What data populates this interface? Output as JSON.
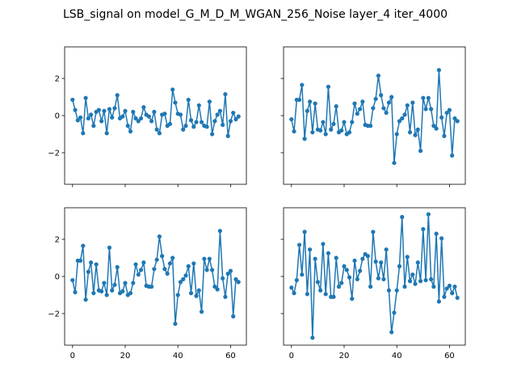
{
  "figure": {
    "suptitle": "LSB_signal on model_G_M_D_M_WGAN_256_Noise layer_4 iter_4000"
  },
  "chart_data": [
    {
      "type": "line",
      "panel": "top-left",
      "marker": "circle",
      "color": "#1f77b4",
      "xlim": [
        -3,
        66
      ],
      "ylim": [
        -3.7,
        3.7
      ],
      "yticks": [
        -2,
        0,
        2
      ],
      "xticks": [
        0,
        20,
        40,
        60
      ],
      "show_xtick_labels": false,
      "show_ytick_labels": true,
      "x": [
        0,
        1,
        2,
        3,
        4,
        5,
        6,
        7,
        8,
        9,
        10,
        11,
        12,
        13,
        14,
        15,
        16,
        17,
        18,
        19,
        20,
        21,
        22,
        23,
        24,
        25,
        26,
        27,
        28,
        29,
        30,
        31,
        32,
        33,
        34,
        35,
        36,
        37,
        38,
        39,
        40,
        41,
        42,
        43,
        44,
        45,
        46,
        47,
        48,
        49,
        50,
        51,
        52,
        53,
        54,
        55,
        56,
        57,
        58,
        59,
        60,
        61,
        62,
        63
      ],
      "y": [
        0.85,
        0.3,
        -0.25,
        -0.1,
        -0.95,
        0.95,
        -0.15,
        0.05,
        -0.55,
        0.2,
        0.3,
        -0.3,
        0.25,
        -0.95,
        0.35,
        -0.1,
        0.4,
        1.1,
        -0.15,
        -0.05,
        0.25,
        -0.55,
        -0.85,
        0.2,
        -0.15,
        -0.3,
        -0.15,
        0.45,
        0.05,
        -0.05,
        -0.3,
        0.2,
        -0.75,
        -0.95,
        0.05,
        0.1,
        -0.55,
        -0.45,
        1.4,
        0.7,
        0.1,
        0.05,
        -0.75,
        -0.55,
        0.85,
        -0.25,
        -0.6,
        -0.35,
        0.55,
        -0.35,
        -0.55,
        -0.6,
        0.75,
        -1.0,
        -0.3,
        0.05,
        0.25,
        -0.5,
        1.15,
        -1.1,
        -0.3,
        0.15,
        -0.2,
        -0.05
      ]
    },
    {
      "type": "line",
      "panel": "top-right",
      "marker": "circle",
      "color": "#1f77b4",
      "xlim": [
        -3,
        66
      ],
      "ylim": [
        -3.7,
        3.7
      ],
      "yticks": [
        -2,
        0,
        2
      ],
      "xticks": [
        0,
        20,
        40,
        60
      ],
      "show_xtick_labels": false,
      "show_ytick_labels": false,
      "x": [
        0,
        1,
        2,
        3,
        4,
        5,
        6,
        7,
        8,
        9,
        10,
        11,
        12,
        13,
        14,
        15,
        16,
        17,
        18,
        19,
        20,
        21,
        22,
        23,
        24,
        25,
        26,
        27,
        28,
        29,
        30,
        31,
        32,
        33,
        34,
        35,
        36,
        37,
        38,
        39,
        40,
        41,
        42,
        43,
        44,
        45,
        46,
        47,
        48,
        49,
        50,
        51,
        52,
        53,
        54,
        55,
        56,
        57,
        58,
        59,
        60,
        61,
        62,
        63
      ],
      "y": [
        -0.2,
        -0.85,
        0.85,
        0.85,
        1.65,
        -1.25,
        0.25,
        0.75,
        -0.9,
        0.65,
        -0.75,
        -0.8,
        -0.35,
        -1.0,
        1.55,
        -0.75,
        -0.45,
        0.5,
        -0.9,
        -0.8,
        -0.35,
        -1.0,
        -0.9,
        -0.35,
        0.65,
        0.1,
        0.35,
        0.75,
        -0.5,
        -0.55,
        -0.55,
        0.4,
        0.9,
        2.15,
        1.1,
        0.4,
        0.15,
        0.7,
        1.0,
        -2.55,
        -1.0,
        -0.3,
        -0.15,
        0.05,
        0.55,
        -0.9,
        0.7,
        -1.05,
        -0.75,
        -1.9,
        0.95,
        0.35,
        0.95,
        0.35,
        -0.55,
        -0.7,
        2.45,
        -0.1,
        -1.1,
        0.15,
        0.3,
        -2.15,
        -0.15,
        -0.3
      ]
    },
    {
      "type": "line",
      "panel": "bottom-left",
      "marker": "circle",
      "color": "#1f77b4",
      "xlim": [
        -3,
        66
      ],
      "ylim": [
        -3.7,
        3.7
      ],
      "yticks": [
        -2,
        0,
        2
      ],
      "xticks": [
        0,
        20,
        40,
        60
      ],
      "show_xtick_labels": true,
      "show_ytick_labels": true,
      "x": [
        0,
        1,
        2,
        3,
        4,
        5,
        6,
        7,
        8,
        9,
        10,
        11,
        12,
        13,
        14,
        15,
        16,
        17,
        18,
        19,
        20,
        21,
        22,
        23,
        24,
        25,
        26,
        27,
        28,
        29,
        30,
        31,
        32,
        33,
        34,
        35,
        36,
        37,
        38,
        39,
        40,
        41,
        42,
        43,
        44,
        45,
        46,
        47,
        48,
        49,
        50,
        51,
        52,
        53,
        54,
        55,
        56,
        57,
        58,
        59,
        60,
        61,
        62,
        63
      ],
      "y": [
        -0.2,
        -0.85,
        0.85,
        0.85,
        1.65,
        -1.25,
        0.25,
        0.75,
        -0.9,
        0.65,
        -0.75,
        -0.8,
        -0.35,
        -1.0,
        1.55,
        -0.75,
        -0.45,
        0.5,
        -0.9,
        -0.8,
        -0.35,
        -1.0,
        -0.9,
        -0.35,
        0.65,
        0.1,
        0.35,
        0.75,
        -0.5,
        -0.55,
        -0.55,
        0.4,
        0.9,
        2.15,
        1.1,
        0.4,
        0.15,
        0.7,
        1.0,
        -2.55,
        -1.0,
        -0.3,
        -0.15,
        0.05,
        0.55,
        -0.9,
        0.7,
        -1.05,
        -0.75,
        -1.9,
        0.95,
        0.35,
        0.95,
        0.35,
        -0.55,
        -0.7,
        2.45,
        -0.1,
        -1.1,
        0.15,
        0.3,
        -2.15,
        -0.15,
        -0.3
      ]
    },
    {
      "type": "line",
      "panel": "bottom-right",
      "marker": "circle",
      "color": "#1f77b4",
      "xlim": [
        -3,
        66
      ],
      "ylim": [
        -3.7,
        3.7
      ],
      "yticks": [
        -2,
        0,
        2
      ],
      "xticks": [
        0,
        20,
        40,
        60
      ],
      "show_xtick_labels": true,
      "show_ytick_labels": false,
      "x": [
        0,
        1,
        2,
        3,
        4,
        5,
        6,
        7,
        8,
        9,
        10,
        11,
        12,
        13,
        14,
        15,
        16,
        17,
        18,
        19,
        20,
        21,
        22,
        23,
        24,
        25,
        26,
        27,
        28,
        29,
        30,
        31,
        32,
        33,
        34,
        35,
        36,
        37,
        38,
        39,
        40,
        41,
        42,
        43,
        44,
        45,
        46,
        47,
        48,
        49,
        50,
        51,
        52,
        53,
        54,
        55,
        56,
        57,
        58,
        59,
        60,
        61,
        62,
        63
      ],
      "y": [
        -0.6,
        -0.9,
        -0.2,
        1.7,
        0.1,
        2.4,
        -0.95,
        1.45,
        -3.3,
        0.95,
        -0.3,
        -0.75,
        1.75,
        -0.95,
        1.25,
        -1.1,
        -1.1,
        1.0,
        -0.55,
        -0.35,
        0.55,
        0.35,
        -0.05,
        -1.2,
        0.85,
        -0.15,
        0.3,
        0.95,
        1.2,
        1.1,
        -0.55,
        2.4,
        0.8,
        -0.1,
        0.75,
        -0.15,
        1.45,
        -0.75,
        -3.0,
        -1.95,
        -0.75,
        0.55,
        3.2,
        -0.55,
        1.05,
        -0.25,
        0.1,
        -0.4,
        0.75,
        -0.25,
        2.55,
        -0.2,
        3.35,
        -0.15,
        -0.55,
        2.3,
        -1.35,
        2.05,
        -1.1,
        -0.65,
        -0.5,
        -0.9,
        -0.55,
        -1.15
      ]
    }
  ]
}
